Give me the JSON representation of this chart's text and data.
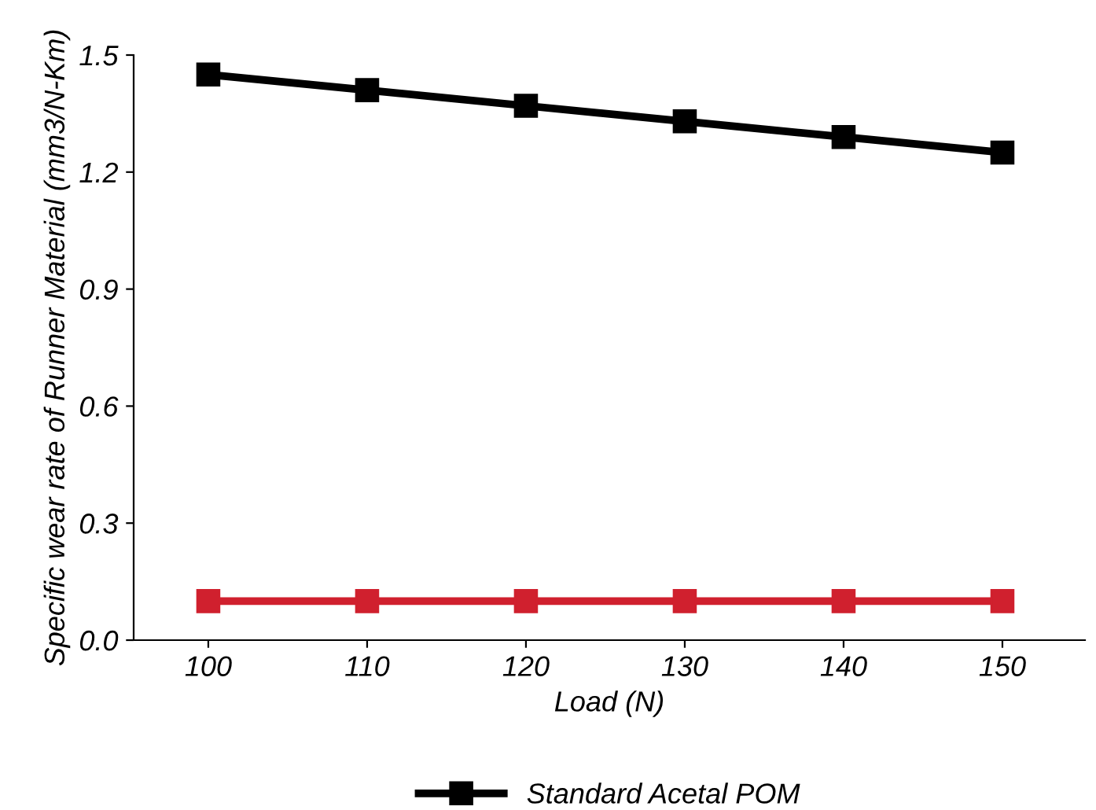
{
  "chart_data": {
    "type": "line",
    "xlabel": "Load (N)",
    "ylabel": "Specific wear rate of Runner Material (mm3/N-Km)",
    "categories": [
      "100",
      "110",
      "120",
      "130",
      "140",
      "150"
    ],
    "series": [
      {
        "name": "Standard Acetal POM",
        "color": "#000000",
        "values": [
          1.45,
          1.41,
          1.37,
          1.33,
          1.29,
          1.25
        ]
      },
      {
        "color": "#d0202e",
        "values": [
          0.1,
          0.1,
          0.1,
          0.1,
          0.1,
          0.1
        ]
      }
    ],
    "ylim": [
      0,
      1.5
    ],
    "yticks": [
      {
        "value": 0,
        "label": "0.0"
      },
      0.3,
      0.6,
      0.9,
      1.2,
      1.5
    ],
    "marker": "square",
    "line_style": "solid",
    "grid": false,
    "legend": "bottom"
  }
}
